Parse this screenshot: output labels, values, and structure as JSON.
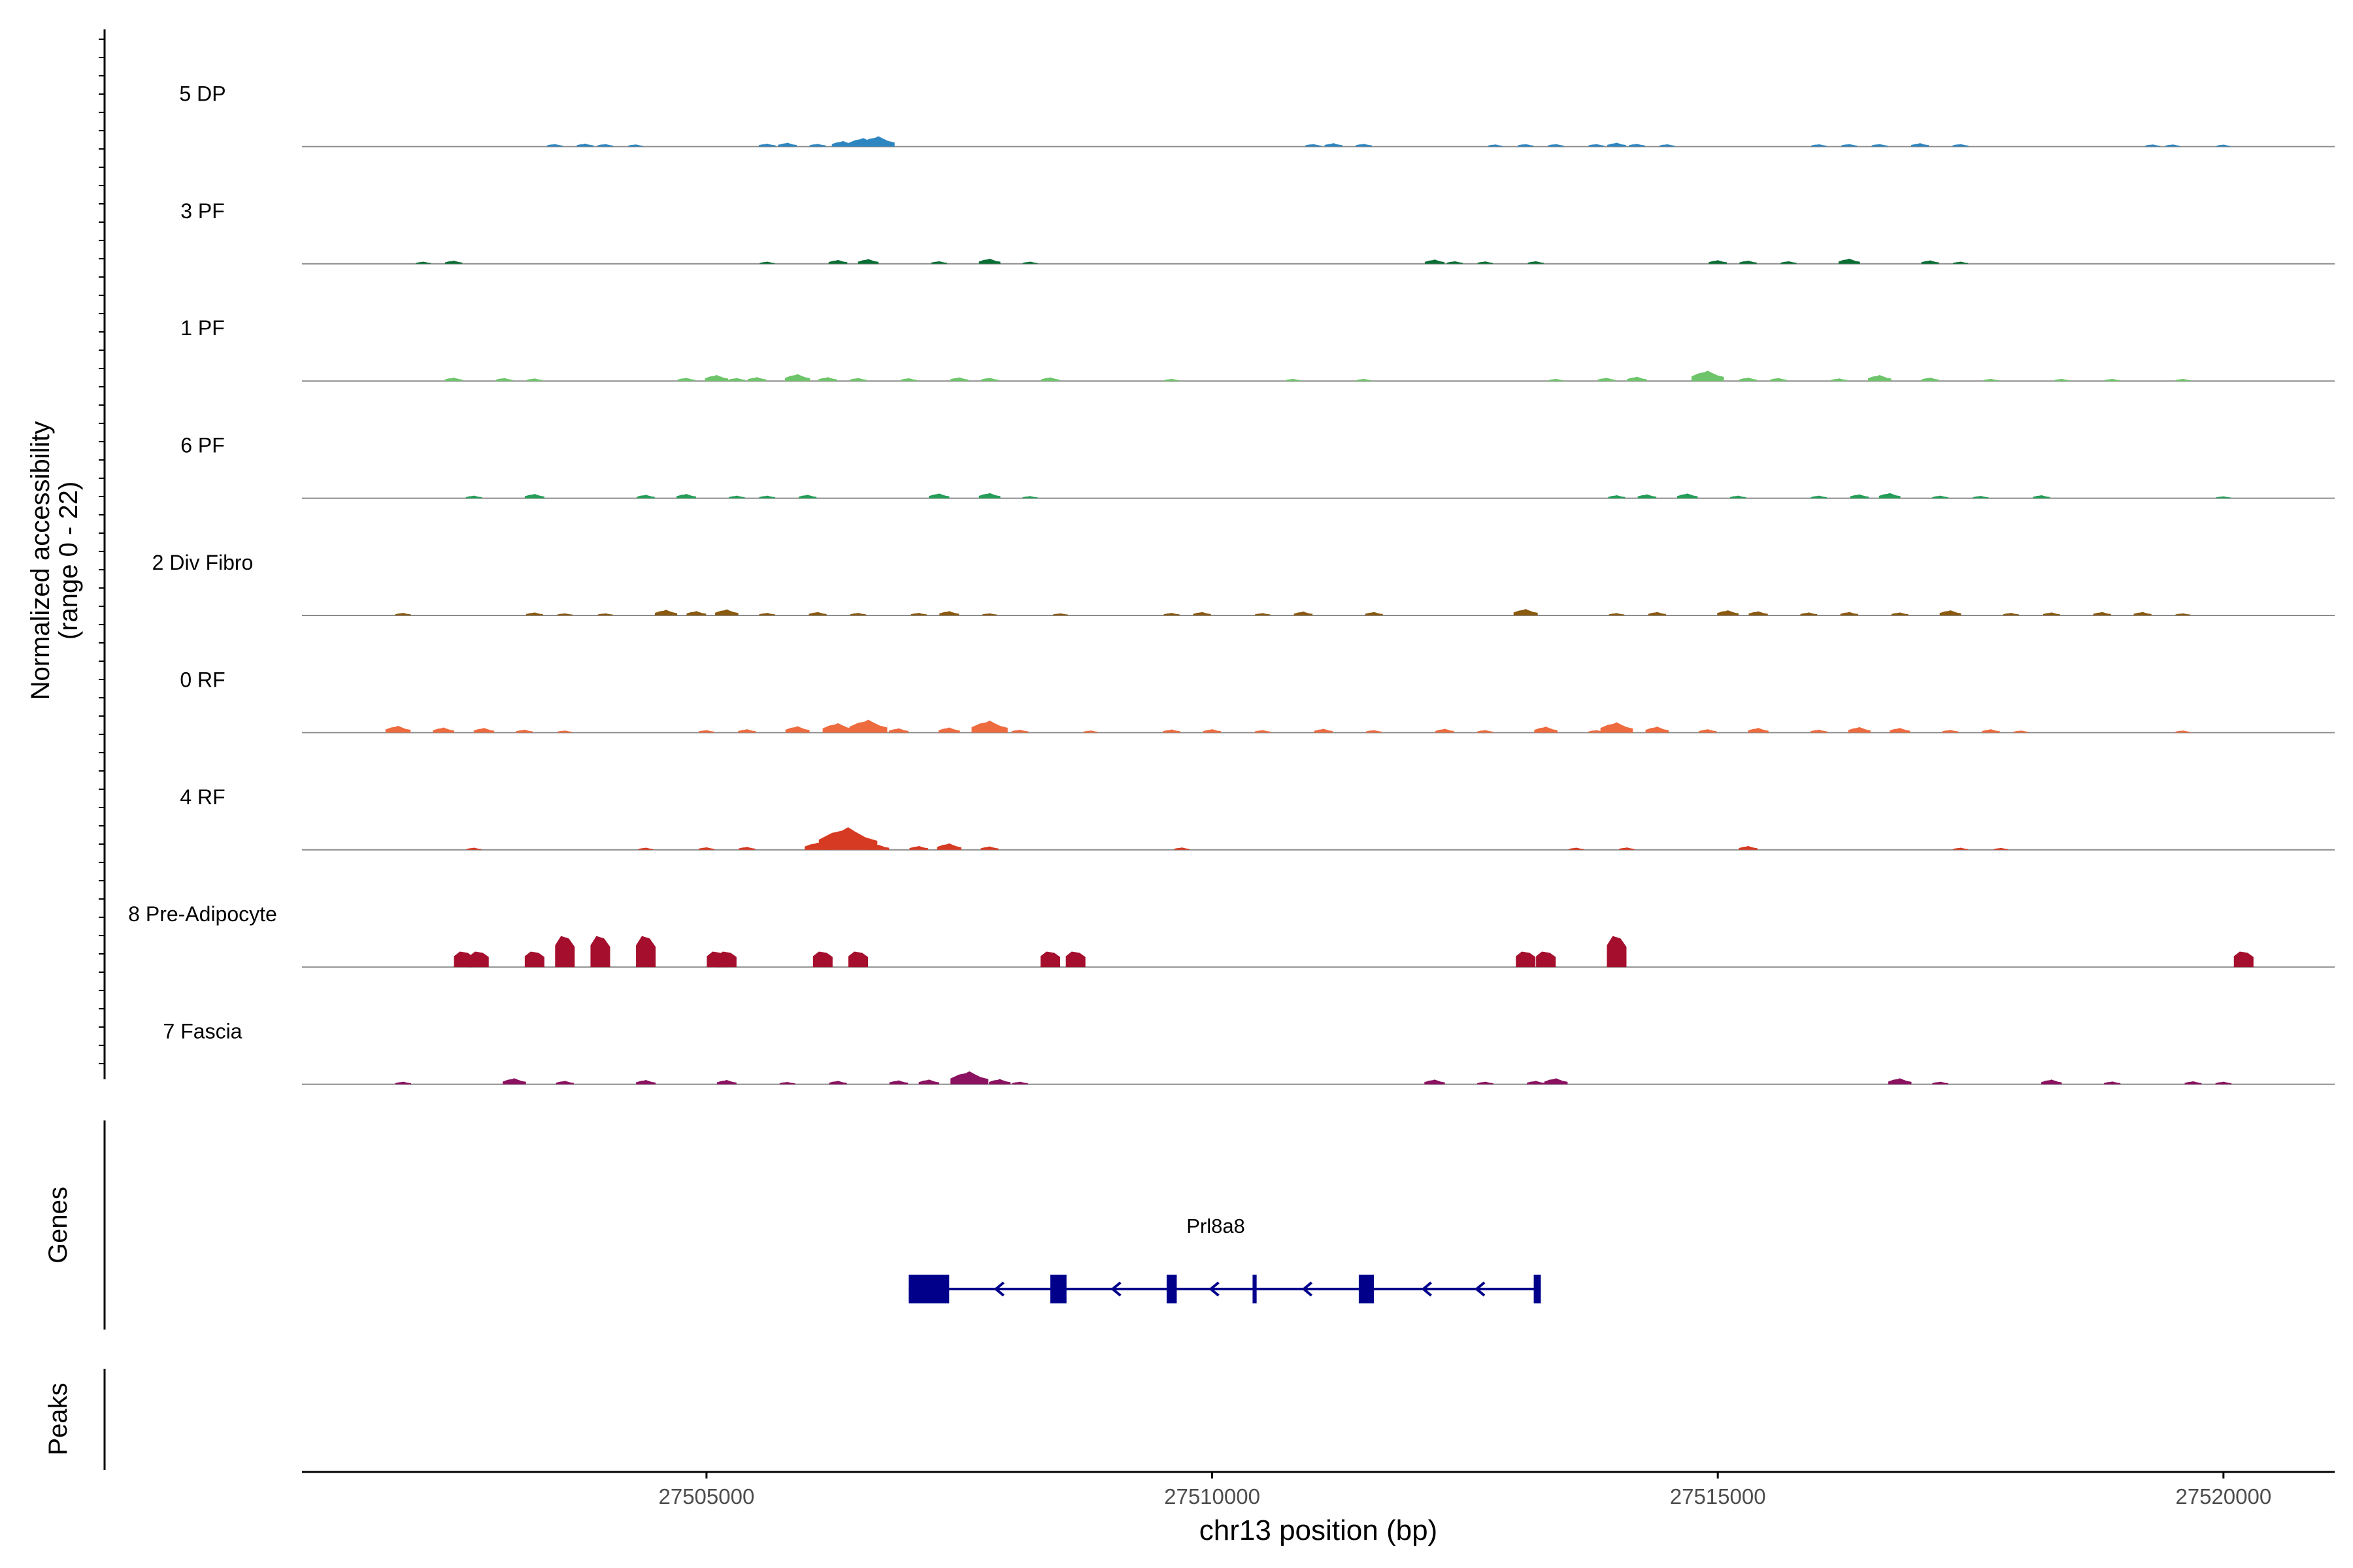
{
  "chart_data": {
    "type": "area",
    "title": "",
    "chromosome": "chr13",
    "xlabel": "chr13 position (bp)",
    "ylabel": "Normalized accessibility",
    "ylabel_range": "(range 0 - 22)",
    "xlim": [
      27501000,
      27521100
    ],
    "x_ticks": [
      27505000,
      27510000,
      27515000,
      27520000
    ],
    "x_tick_labels": [
      "27505000",
      "27510000",
      "27515000",
      "27520000"
    ],
    "ylim": [
      0,
      22
    ],
    "series": [
      {
        "name": "5 DP",
        "color": "#2e86c1",
        "peaks": [
          [
            27503500,
            1.2
          ],
          [
            27503800,
            1.4
          ],
          [
            27504000,
            1.2
          ],
          [
            27504300,
            1
          ],
          [
            27505600,
            1.4
          ],
          [
            27505800,
            1.8
          ],
          [
            27506100,
            1.3
          ],
          [
            27506350,
            2.6
          ],
          [
            27506550,
            4
          ],
          [
            27506700,
            4.8
          ],
          [
            27511000,
            1.2
          ],
          [
            27511200,
            1.6
          ],
          [
            27511500,
            1.3
          ],
          [
            27512800,
            1
          ],
          [
            27513100,
            1.2
          ],
          [
            27513400,
            1.2
          ],
          [
            27513800,
            1.2
          ],
          [
            27514000,
            1.8
          ],
          [
            27514200,
            1.3
          ],
          [
            27514500,
            1.1
          ],
          [
            27516000,
            1.1
          ],
          [
            27516300,
            1.2
          ],
          [
            27516600,
            1.2
          ],
          [
            27517000,
            1.6
          ],
          [
            27517400,
            1.2
          ],
          [
            27519300,
            1
          ],
          [
            27519500,
            1
          ],
          [
            27520000,
            0.9
          ]
        ]
      },
      {
        "name": "3 PF",
        "color": "#0b6e35",
        "peaks": [
          [
            27502200,
            1
          ],
          [
            27502500,
            1.5
          ],
          [
            27505600,
            1
          ],
          [
            27506300,
            1.8
          ],
          [
            27506600,
            2.2
          ],
          [
            27507300,
            1.2
          ],
          [
            27507800,
            2.4
          ],
          [
            27508200,
            1
          ],
          [
            27512200,
            2
          ],
          [
            27512400,
            1.2
          ],
          [
            27512700,
            1.1
          ],
          [
            27513200,
            1.2
          ],
          [
            27515000,
            1.7
          ],
          [
            27515300,
            1.5
          ],
          [
            27515700,
            1.2
          ],
          [
            27516300,
            2.4
          ],
          [
            27517100,
            1.6
          ],
          [
            27517400,
            1
          ]
        ]
      },
      {
        "name": "1 PF",
        "color": "#6dc46a",
        "peaks": [
          [
            27502500,
            1.6
          ],
          [
            27503000,
            1.4
          ],
          [
            27503300,
            1.2
          ],
          [
            27504800,
            1.5
          ],
          [
            27505100,
            2.8
          ],
          [
            27505300,
            1.4
          ],
          [
            27505500,
            1.8
          ],
          [
            27505900,
            3.2
          ],
          [
            27506200,
            1.8
          ],
          [
            27506500,
            1.4
          ],
          [
            27507000,
            1.3
          ],
          [
            27507500,
            1.7
          ],
          [
            27507800,
            1.5
          ],
          [
            27508400,
            1.7
          ],
          [
            27509600,
            1
          ],
          [
            27510800,
            1
          ],
          [
            27511500,
            1
          ],
          [
            27513400,
            1
          ],
          [
            27513900,
            1.5
          ],
          [
            27514200,
            2
          ],
          [
            27514900,
            4.8
          ],
          [
            27515300,
            1.6
          ],
          [
            27515600,
            1.4
          ],
          [
            27516200,
            1.2
          ],
          [
            27516600,
            2.8
          ],
          [
            27517100,
            1.6
          ],
          [
            27517700,
            1
          ],
          [
            27518400,
            1
          ],
          [
            27518900,
            1
          ],
          [
            27519600,
            1
          ]
        ]
      },
      {
        "name": "6 PF",
        "color": "#239d57",
        "peaks": [
          [
            27502700,
            1.2
          ],
          [
            27503300,
            2
          ],
          [
            27504400,
            1.6
          ],
          [
            27504800,
            2
          ],
          [
            27505300,
            1.2
          ],
          [
            27505600,
            1.2
          ],
          [
            27506000,
            1.6
          ],
          [
            27507300,
            2.2
          ],
          [
            27507800,
            2.4
          ],
          [
            27508200,
            1
          ],
          [
            27514000,
            1.4
          ],
          [
            27514300,
            1.8
          ],
          [
            27514700,
            2.2
          ],
          [
            27515200,
            1.2
          ],
          [
            27516000,
            1.2
          ],
          [
            27516400,
            1.8
          ],
          [
            27516700,
            2.4
          ],
          [
            27517200,
            1.2
          ],
          [
            27517600,
            1.1
          ],
          [
            27518200,
            1.4
          ],
          [
            27520000,
            0.9
          ]
        ]
      },
      {
        "name": "2 Div Fibro",
        "color": "#8a5a11",
        "peaks": [
          [
            27502000,
            1.2
          ],
          [
            27503300,
            1.4
          ],
          [
            27503600,
            1
          ],
          [
            27504000,
            1
          ],
          [
            27504600,
            2.6
          ],
          [
            27504900,
            2
          ],
          [
            27505200,
            2.8
          ],
          [
            27505600,
            1.2
          ],
          [
            27506100,
            1.6
          ],
          [
            27506500,
            1.2
          ],
          [
            27507100,
            1.2
          ],
          [
            27507400,
            2
          ],
          [
            27507800,
            1
          ],
          [
            27508500,
            1
          ],
          [
            27509600,
            1.2
          ],
          [
            27509900,
            1.6
          ],
          [
            27510500,
            1.1
          ],
          [
            27510900,
            1.8
          ],
          [
            27511600,
            1.6
          ],
          [
            27513100,
            3
          ],
          [
            27514000,
            1.1
          ],
          [
            27514400,
            1.6
          ],
          [
            27515100,
            2.4
          ],
          [
            27515400,
            1.9
          ],
          [
            27515900,
            1.4
          ],
          [
            27516300,
            1.6
          ],
          [
            27516800,
            1.4
          ],
          [
            27517300,
            2.4
          ],
          [
            27517900,
            1.2
          ],
          [
            27518300,
            1.4
          ],
          [
            27518800,
            1.6
          ],
          [
            27519200,
            1.6
          ],
          [
            27519600,
            1
          ]
        ]
      },
      {
        "name": "0 RF",
        "color": "#ee6b3f",
        "peaks": [
          [
            27501950,
            3.2
          ],
          [
            27502400,
            2.4
          ],
          [
            27502800,
            2.2
          ],
          [
            27503200,
            1.4
          ],
          [
            27503600,
            1
          ],
          [
            27505000,
            1.2
          ],
          [
            27505400,
            1.6
          ],
          [
            27505900,
            3
          ],
          [
            27506300,
            4.4
          ],
          [
            27506600,
            6
          ],
          [
            27506900,
            2
          ],
          [
            27507400,
            2.4
          ],
          [
            27507800,
            5.6
          ],
          [
            27508100,
            1.4
          ],
          [
            27508800,
            1
          ],
          [
            27509600,
            1.5
          ],
          [
            27510000,
            1.6
          ],
          [
            27510500,
            1.2
          ],
          [
            27511100,
            1.8
          ],
          [
            27511600,
            1.2
          ],
          [
            27512300,
            1.8
          ],
          [
            27512700,
            1.2
          ],
          [
            27513300,
            2.8
          ],
          [
            27513800,
            1.2
          ],
          [
            27514000,
            4.8
          ],
          [
            27514400,
            2.8
          ],
          [
            27514900,
            1.6
          ],
          [
            27515400,
            2.2
          ],
          [
            27516000,
            1.4
          ],
          [
            27516400,
            2.6
          ],
          [
            27516800,
            2.2
          ],
          [
            27517300,
            1.3
          ],
          [
            27517700,
            1.6
          ],
          [
            27518000,
            1
          ],
          [
            27519600,
            1
          ]
        ]
      },
      {
        "name": "4 RF",
        "color": "#d63a22",
        "peaks": [
          [
            27502700,
            1
          ],
          [
            27504400,
            1
          ],
          [
            27505000,
            1.2
          ],
          [
            27505400,
            1.4
          ],
          [
            27506100,
            3.4
          ],
          [
            27506400,
            10.5
          ],
          [
            27506700,
            2.4
          ],
          [
            27507100,
            1.8
          ],
          [
            27507400,
            3
          ],
          [
            27507800,
            1.6
          ],
          [
            27509700,
            1.1
          ],
          [
            27513600,
            1
          ],
          [
            27514100,
            1.1
          ],
          [
            27515300,
            1.8
          ],
          [
            27517400,
            1
          ],
          [
            27517800,
            0.9
          ]
        ]
      },
      {
        "name": "8 Pre-Adipocyte",
        "color": "#a50f2d",
        "peaks": [
          [
            27502600,
            7.2
          ],
          [
            27502750,
            7.2
          ],
          [
            27503300,
            7.2
          ],
          [
            27503600,
            14.4
          ],
          [
            27503950,
            14.4
          ],
          [
            27504400,
            14.4
          ],
          [
            27505100,
            7.2
          ],
          [
            27505200,
            7.2
          ],
          [
            27506150,
            7.2
          ],
          [
            27506500,
            7.2
          ],
          [
            27508400,
            7.2
          ],
          [
            27508650,
            7.2
          ],
          [
            27513100,
            7.2
          ],
          [
            27513300,
            7.2
          ],
          [
            27514000,
            14.4
          ],
          [
            27520200,
            7.2
          ]
        ]
      },
      {
        "name": "7 Fascia",
        "color": "#8a1260",
        "peaks": [
          [
            27502000,
            1.2
          ],
          [
            27503100,
            2.8
          ],
          [
            27503600,
            1.6
          ],
          [
            27504400,
            2
          ],
          [
            27505200,
            2
          ],
          [
            27505800,
            1.1
          ],
          [
            27506300,
            1.6
          ],
          [
            27506900,
            1.8
          ],
          [
            27507200,
            2.2
          ],
          [
            27507600,
            6
          ],
          [
            27507900,
            2.4
          ],
          [
            27508100,
            1.2
          ],
          [
            27512200,
            2.2
          ],
          [
            27512700,
            1.2
          ],
          [
            27513200,
            1.6
          ],
          [
            27513400,
            2.8
          ],
          [
            27516800,
            2.8
          ],
          [
            27517200,
            1.2
          ],
          [
            27518300,
            2.2
          ],
          [
            27518900,
            1.3
          ],
          [
            27519700,
            1.4
          ],
          [
            27520000,
            1.2
          ]
        ]
      }
    ],
    "gene_track": {
      "label": "Genes",
      "gene_name": "Prl8a8",
      "strand": "-",
      "start": 27507000,
      "end": 27513250,
      "exons": [
        [
          27507000,
          27507400
        ],
        [
          27508400,
          27508560
        ],
        [
          27509550,
          27509650
        ],
        [
          27510400,
          27510440
        ],
        [
          27511450,
          27511600
        ],
        [
          27513180,
          27513250
        ]
      ],
      "color": "#00008b"
    },
    "peaks_track": {
      "label": "Peaks"
    }
  }
}
